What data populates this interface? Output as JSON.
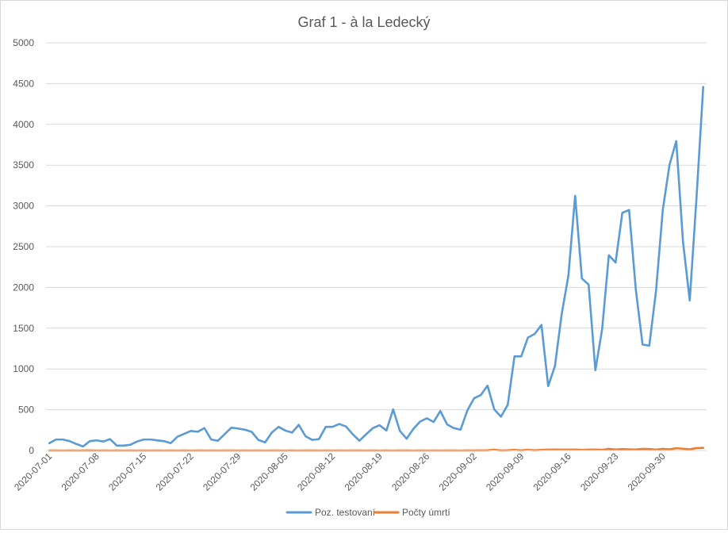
{
  "chart_data": {
    "type": "line",
    "title": "Graf 1 - à la Ledecký",
    "xlabel": "",
    "ylabel": "",
    "ylim": [
      0,
      5000
    ],
    "yticks": [
      0,
      500,
      1000,
      1500,
      2000,
      2500,
      3000,
      3500,
      4000,
      4500,
      5000
    ],
    "xtick_labels": [
      "2020-07-01",
      "2020-07-08",
      "2020-07-15",
      "2020-07-22",
      "2020-07-29",
      "2020-08-05",
      "2020-08-12",
      "2020-08-19",
      "2020-08-26",
      "2020-09-02",
      "2020-09-09",
      "2020-09-16",
      "2020-09-23",
      "2020-09-30"
    ],
    "grid": "horizontal",
    "legend_position": "bottom",
    "x_start": "2020-07-01",
    "series": [
      {
        "name": "Poz. testovaní",
        "color": "#5b9bd5",
        "values": [
          90,
          135,
          135,
          115,
          80,
          50,
          115,
          125,
          110,
          140,
          60,
          60,
          70,
          110,
          135,
          135,
          125,
          115,
          90,
          170,
          205,
          240,
          230,
          275,
          135,
          120,
          200,
          280,
          270,
          255,
          230,
          130,
          100,
          220,
          290,
          245,
          220,
          315,
          175,
          130,
          140,
          290,
          290,
          325,
          295,
          200,
          120,
          200,
          275,
          310,
          245,
          505,
          240,
          145,
          265,
          355,
          395,
          350,
          485,
          320,
          275,
          255,
          490,
          640,
          680,
          795,
          505,
          415,
          560,
          1155,
          1155,
          1385,
          1430,
          1540,
          790,
          1035,
          1670,
          2145,
          3125,
          2110,
          2035,
          985,
          1485,
          2395,
          2305,
          2915,
          2950,
          1975,
          1300,
          1285,
          1960,
          2950,
          3505,
          3795,
          2560,
          1840,
          3095,
          4460
        ]
      },
      {
        "name": "Počty úmrtí",
        "color": "#ed7d31",
        "values": [
          1,
          1,
          0,
          1,
          0,
          1,
          2,
          0,
          1,
          0,
          1,
          0,
          1,
          0,
          1,
          0,
          1,
          0,
          1,
          0,
          1,
          0,
          1,
          0,
          1,
          0,
          1,
          1,
          0,
          1,
          0,
          1,
          0,
          1,
          1,
          0,
          1,
          0,
          1,
          1,
          0,
          1,
          0,
          1,
          0,
          1,
          1,
          0,
          1,
          0,
          1,
          0,
          1,
          1,
          0,
          1,
          0,
          1,
          0,
          1,
          1,
          0,
          2,
          1,
          2,
          3,
          10,
          1,
          3,
          8,
          2,
          9,
          3,
          8,
          10,
          12,
          10,
          10,
          12,
          8,
          10,
          12,
          8,
          20,
          12,
          18,
          14,
          12,
          20,
          18,
          10,
          20,
          14,
          28,
          22,
          14,
          30,
          32
        ]
      }
    ]
  }
}
